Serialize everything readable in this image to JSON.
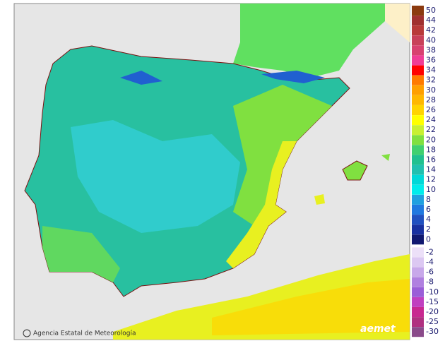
{
  "map": {
    "attribution": "Agencia Estatal de Meteorología",
    "logo": "aemet",
    "legend": {
      "items": [
        {
          "label": "50",
          "color": "#8b3a0f"
        },
        {
          "label": "44",
          "color": "#a03030"
        },
        {
          "label": "42",
          "color": "#b83a3a"
        },
        {
          "label": "40",
          "color": "#c8405a"
        },
        {
          "label": "38",
          "color": "#d84070"
        },
        {
          "label": "36",
          "color": "#f03c96"
        },
        {
          "label": "34",
          "color": "#ff0000"
        },
        {
          "label": "32",
          "color": "#ff7a00"
        },
        {
          "label": "30",
          "color": "#ffa000"
        },
        {
          "label": "28",
          "color": "#ffb800"
        },
        {
          "label": "26",
          "color": "#ffd400"
        },
        {
          "label": "24",
          "color": "#ffff00"
        },
        {
          "label": "22",
          "color": "#c8f032"
        },
        {
          "label": "20",
          "color": "#80e040"
        },
        {
          "label": "18",
          "color": "#40d070"
        },
        {
          "label": "16",
          "color": "#20c090"
        },
        {
          "label": "14",
          "color": "#20c0b0"
        },
        {
          "label": "12",
          "color": "#00d8d8"
        },
        {
          "label": "10",
          "color": "#00ecec"
        },
        {
          "label": "8",
          "color": "#20a0e0"
        },
        {
          "label": "6",
          "color": "#2078e0"
        },
        {
          "label": "4",
          "color": "#2050c0"
        },
        {
          "label": "2",
          "color": "#1830a0"
        },
        {
          "label": "0",
          "color": "#101870"
        },
        {
          "label": "-2",
          "color": "#ece0f8"
        },
        {
          "label": "-4",
          "color": "#dcc8f2"
        },
        {
          "label": "-6",
          "color": "#c8a8ea"
        },
        {
          "label": "-8",
          "color": "#b080e0"
        },
        {
          "label": "-10",
          "color": "#9a5ed8"
        },
        {
          "label": "-15",
          "color": "#c040c0"
        },
        {
          "label": "-20",
          "color": "#c82890"
        },
        {
          "label": "-25",
          "color": "#b03080"
        },
        {
          "label": "-30",
          "color": "#8a4a8a"
        }
      ]
    }
  }
}
